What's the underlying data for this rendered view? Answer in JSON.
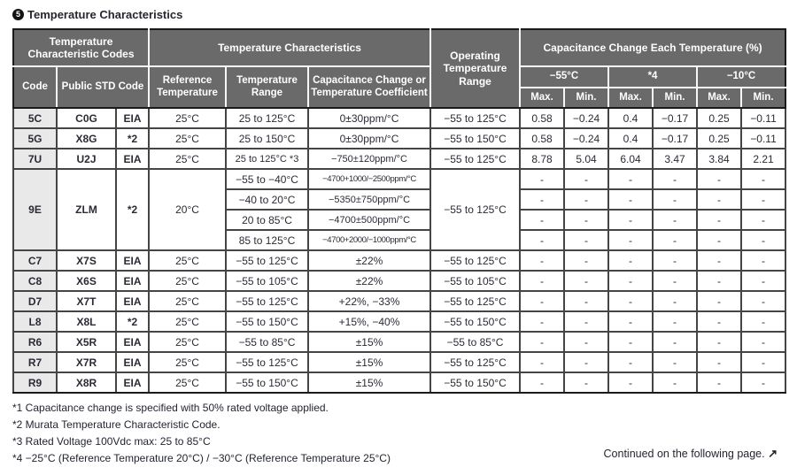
{
  "page": {
    "title_badge": "5",
    "title": "Temperature Characteristics",
    "continued_note": "Continued on the following page.",
    "continued_arrow": "↗"
  },
  "colors": {
    "header_bg": "#6a6a6a",
    "header_text": "#ffffff",
    "code_column_bg": "#e9e9e9",
    "body_text": "#2b2b36",
    "grid_line": "#454545",
    "outer_border": "#1a1a1a"
  },
  "table": {
    "header": {
      "codes_group": "Temperature Characteristic Codes",
      "characteristics_group": "Temperature Characteristics",
      "operating_range": "Operating Temperature Range",
      "cap_change_group": "Capacitance Change Each Temperature (%)",
      "code": "Code",
      "public_std_code": "Public STD Code",
      "reference_temperature": "Reference Temperature",
      "temperature_range": "Temperature Range",
      "cap_change_or_coef": "Capacitance Change or Temperature Coefficient",
      "temp_minus55": "−55°C",
      "temp_star4": "*4",
      "temp_minus10": "−10°C",
      "max": "Max.",
      "min": "Min."
    },
    "rows": [
      {
        "code": "5C",
        "public_std": "C0G",
        "std_org": "EIA",
        "reference_temperature": "25°C",
        "operating_range": "−55 to 125°C",
        "subrows": [
          {
            "temperature_range": "25 to 125°C",
            "coefficient": "0±30ppm/°C",
            "values": [
              "0.58",
              "−0.24",
              "0.4",
              "−0.17",
              "0.25",
              "−0.11"
            ]
          }
        ]
      },
      {
        "code": "5G",
        "public_std": "X8G",
        "std_org": "*2",
        "reference_temperature": "25°C",
        "operating_range": "−55 to 150°C",
        "subrows": [
          {
            "temperature_range": "25 to 150°C",
            "coefficient": "0±30ppm/°C",
            "values": [
              "0.58",
              "−0.24",
              "0.4",
              "−0.17",
              "0.25",
              "−0.11"
            ]
          }
        ]
      },
      {
        "code": "7U",
        "public_std": "U2J",
        "std_org": "EIA",
        "reference_temperature": "25°C",
        "operating_range": "−55 to 125°C",
        "subrows": [
          {
            "temperature_range": "25 to 125°C *3",
            "coefficient": "−750±120ppm/°C",
            "values": [
              "8.78",
              "5.04",
              "6.04",
              "3.47",
              "3.84",
              "2.21"
            ]
          }
        ]
      },
      {
        "code": "9E",
        "public_std": "ZLM",
        "std_org": "*2",
        "reference_temperature": "20°C",
        "operating_range": "−55 to 125°C",
        "subrows": [
          {
            "temperature_range": "−55 to −40°C",
            "coefficient": "−4700+1000/−2500ppm/°C",
            "values": [
              "-",
              "-",
              "-",
              "-",
              "-",
              "-"
            ]
          },
          {
            "temperature_range": "−40 to 20°C",
            "coefficient": "−5350±750ppm/°C",
            "values": [
              "-",
              "-",
              "-",
              "-",
              "-",
              "-"
            ]
          },
          {
            "temperature_range": "20 to 85°C",
            "coefficient": "−4700±500ppm/°C",
            "values": [
              "-",
              "-",
              "-",
              "-",
              "-",
              "-"
            ]
          },
          {
            "temperature_range": "85 to 125°C",
            "coefficient": "−4700+2000/−1000ppm/°C",
            "values": [
              "-",
              "-",
              "-",
              "-",
              "-",
              "-"
            ]
          }
        ]
      },
      {
        "code": "C7",
        "public_std": "X7S",
        "std_org": "EIA",
        "reference_temperature": "25°C",
        "operating_range": "−55 to 125°C",
        "subrows": [
          {
            "temperature_range": "−55 to 125°C",
            "coefficient": "±22%",
            "values": [
              "-",
              "-",
              "-",
              "-",
              "-",
              "-"
            ]
          }
        ]
      },
      {
        "code": "C8",
        "public_std": "X6S",
        "std_org": "EIA",
        "reference_temperature": "25°C",
        "operating_range": "−55 to 105°C",
        "subrows": [
          {
            "temperature_range": "−55 to 105°C",
            "coefficient": "±22%",
            "values": [
              "-",
              "-",
              "-",
              "-",
              "-",
              "-"
            ]
          }
        ]
      },
      {
        "code": "D7",
        "public_std": "X7T",
        "std_org": "EIA",
        "reference_temperature": "25°C",
        "operating_range": "−55 to 125°C",
        "subrows": [
          {
            "temperature_range": "−55 to 125°C",
            "coefficient": "+22%, −33%",
            "values": [
              "-",
              "-",
              "-",
              "-",
              "-",
              "-"
            ]
          }
        ]
      },
      {
        "code": "L8",
        "public_std": "X8L",
        "std_org": "*2",
        "reference_temperature": "25°C",
        "operating_range": "−55 to 150°C",
        "subrows": [
          {
            "temperature_range": "−55 to 150°C",
            "coefficient": "+15%, −40%",
            "values": [
              "-",
              "-",
              "-",
              "-",
              "-",
              "-"
            ]
          }
        ]
      },
      {
        "code": "R6",
        "public_std": "X5R",
        "std_org": "EIA",
        "reference_temperature": "25°C",
        "operating_range": "−55 to 85°C",
        "subrows": [
          {
            "temperature_range": "−55 to 85°C",
            "coefficient": "±15%",
            "values": [
              "-",
              "-",
              "-",
              "-",
              "-",
              "-"
            ]
          }
        ]
      },
      {
        "code": "R7",
        "public_std": "X7R",
        "std_org": "EIA",
        "reference_temperature": "25°C",
        "operating_range": "−55 to 125°C",
        "subrows": [
          {
            "temperature_range": "−55 to 125°C",
            "coefficient": "±15%",
            "values": [
              "-",
              "-",
              "-",
              "-",
              "-",
              "-"
            ]
          }
        ]
      },
      {
        "code": "R9",
        "public_std": "X8R",
        "std_org": "EIA",
        "reference_temperature": "25°C",
        "operating_range": "−55 to 150°C",
        "subrows": [
          {
            "temperature_range": "−55 to 150°C",
            "coefficient": "±15%",
            "values": [
              "-",
              "-",
              "-",
              "-",
              "-",
              "-"
            ]
          }
        ]
      }
    ]
  },
  "footnotes": [
    "*1 Capacitance change is specified with 50% rated voltage applied.",
    "*2 Murata Temperature Characteristic Code.",
    "*3 Rated Voltage 100Vdc max: 25 to 85°C",
    "*4 −25°C (Reference Temperature 20°C) / −30°C (Reference Temperature 25°C)"
  ]
}
